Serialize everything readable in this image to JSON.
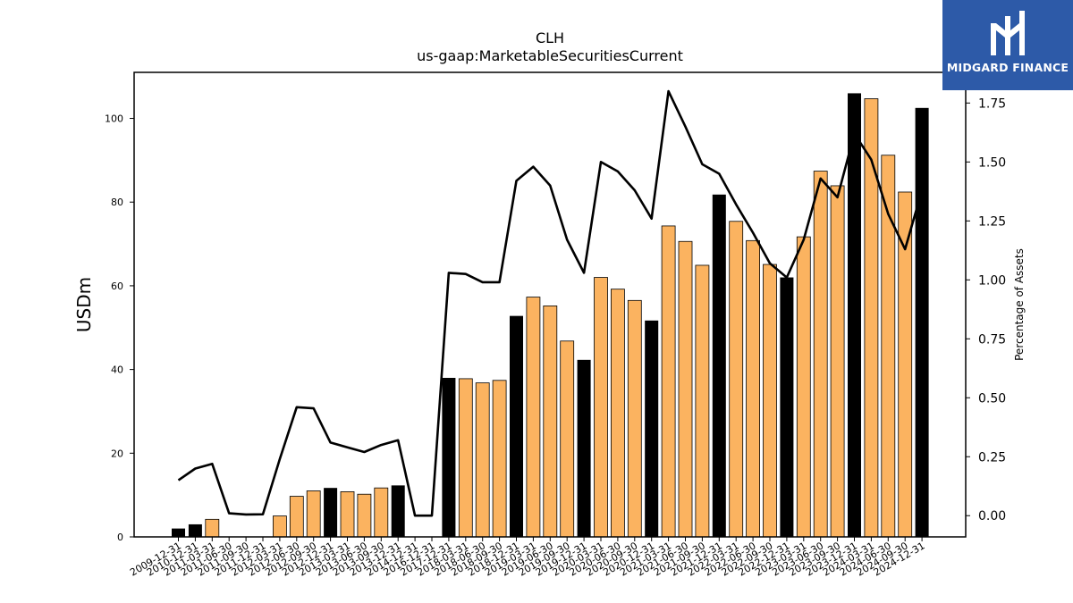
{
  "brand": {
    "name": "MIDGARD FINANCE",
    "bg": "#2d5aa8"
  },
  "chart_data": {
    "type": "bar",
    "title": "CLH",
    "subtitle": "us-gaap:MarketableSecuritiesCurrent",
    "ylabel": "USDm",
    "ylabel_right": "Percentage of Assets",
    "ylim": [
      0,
      111
    ],
    "ylim_right": [
      -0.09,
      1.88
    ],
    "yticks": [
      0,
      20,
      40,
      60,
      80,
      100
    ],
    "yticks_right": [
      0.0,
      0.25,
      0.5,
      0.75,
      1.0,
      1.25,
      1.5,
      1.75
    ],
    "grid": false,
    "colors": {
      "annual": "#000000",
      "quarterly": "#fbb360",
      "line": "#000000"
    },
    "categories": [
      "2009-12-31",
      "2010-12-31",
      "2011-03-31",
      "2011-06-30",
      "2011-09-30",
      "2011-12-31",
      "2012-03-31",
      "2012-06-30",
      "2012-09-30",
      "2012-12-31",
      "2013-03-31",
      "2013-06-30",
      "2013-09-30",
      "2013-12-31",
      "2014-12-31",
      "2016-12-31",
      "2017-12-31",
      "2018-03-31",
      "2018-06-30",
      "2018-09-30",
      "2018-12-31",
      "2019-03-31",
      "2019-06-30",
      "2019-09-30",
      "2019-12-31",
      "2020-03-31",
      "2020-06-30",
      "2020-09-30",
      "2020-12-31",
      "2021-03-31",
      "2021-06-30",
      "2021-09-30",
      "2021-12-31",
      "2022-03-31",
      "2022-06-30",
      "2022-09-30",
      "2022-12-31",
      "2023-03-31",
      "2023-06-30",
      "2023-09-30",
      "2023-12-31",
      "2024-03-31",
      "2024-06-30",
      "2024-09-30",
      "2024-12-31"
    ],
    "series": [
      {
        "kind": "bar",
        "values": [
          2.0,
          3.0,
          4.2,
          0,
          0,
          0,
          5.0,
          9.7,
          11.0,
          11.7,
          10.8,
          10.2,
          11.7,
          12.3,
          0,
          0,
          38.0,
          37.8,
          36.8,
          37.4,
          52.8,
          57.3,
          55.2,
          46.8,
          42.3,
          62.0,
          59.2,
          56.5,
          51.7,
          74.3,
          70.6,
          64.9,
          81.8,
          75.4,
          70.8,
          65.1,
          62.0,
          71.7,
          87.4,
          83.9,
          106.0,
          104.7,
          91.2,
          82.4,
          102.5
        ],
        "annual": [
          true,
          true,
          false,
          false,
          false,
          true,
          false,
          false,
          false,
          true,
          false,
          false,
          false,
          true,
          true,
          true,
          true,
          false,
          false,
          false,
          true,
          false,
          false,
          false,
          true,
          false,
          false,
          false,
          true,
          false,
          false,
          false,
          true,
          false,
          false,
          false,
          true,
          false,
          false,
          false,
          true,
          false,
          false,
          false,
          true
        ]
      },
      {
        "kind": "line",
        "axis": "right",
        "values": [
          0.15,
          0.2,
          0.22,
          0.01,
          0.005,
          0.006,
          0.24,
          0.46,
          0.455,
          0.31,
          0.29,
          0.27,
          0.3,
          0.32,
          0.0,
          0.0,
          1.03,
          1.025,
          0.99,
          0.99,
          1.42,
          1.48,
          1.4,
          1.17,
          1.03,
          1.5,
          1.46,
          1.38,
          1.26,
          1.8,
          1.65,
          1.49,
          1.45,
          1.32,
          1.2,
          1.07,
          1.01,
          1.17,
          1.43,
          1.35,
          1.62,
          1.51,
          1.28,
          1.13,
          1.38
        ]
      }
    ]
  }
}
